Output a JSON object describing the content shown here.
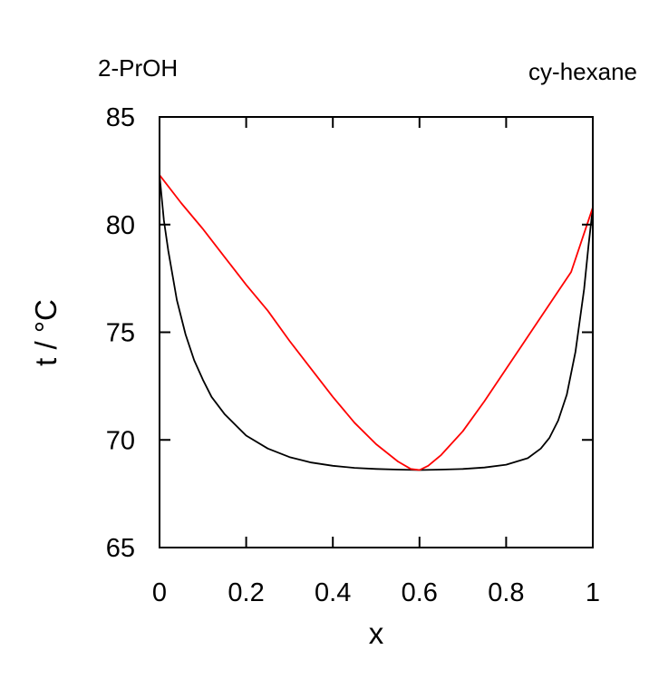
{
  "chart_data": {
    "type": "line",
    "title": "",
    "xlabel": "x",
    "ylabel": "t / °C",
    "xlim": [
      0,
      1
    ],
    "ylim": [
      65,
      85
    ],
    "x_ticks": [
      0,
      0.2,
      0.4,
      0.6,
      0.8,
      1
    ],
    "x_tick_labels": [
      "0",
      "0.2",
      "0.4",
      "0.6",
      "0.8",
      "1"
    ],
    "y_ticks": [
      65,
      70,
      75,
      80,
      85
    ],
    "y_tick_labels": [
      "65",
      "70",
      "75",
      "80",
      "85"
    ],
    "grid": false,
    "legend": "none",
    "left_component_label": "2-PrOH",
    "right_component_label": "cy-hexane",
    "series": [
      {
        "color": "#000000",
        "points": [
          [
            0.0,
            82.3
          ],
          [
            0.01,
            80.2
          ],
          [
            0.02,
            78.8
          ],
          [
            0.04,
            76.5
          ],
          [
            0.06,
            74.9
          ],
          [
            0.08,
            73.7
          ],
          [
            0.1,
            72.8
          ],
          [
            0.12,
            72.0
          ],
          [
            0.15,
            71.2
          ],
          [
            0.18,
            70.6
          ],
          [
            0.2,
            70.2
          ],
          [
            0.25,
            69.6
          ],
          [
            0.3,
            69.2
          ],
          [
            0.35,
            68.95
          ],
          [
            0.4,
            68.8
          ],
          [
            0.45,
            68.7
          ],
          [
            0.5,
            68.65
          ],
          [
            0.55,
            68.62
          ],
          [
            0.6,
            68.6
          ],
          [
            0.65,
            68.62
          ],
          [
            0.7,
            68.65
          ],
          [
            0.75,
            68.72
          ],
          [
            0.8,
            68.85
          ],
          [
            0.85,
            69.15
          ],
          [
            0.88,
            69.6
          ],
          [
            0.9,
            70.1
          ],
          [
            0.92,
            70.9
          ],
          [
            0.94,
            72.1
          ],
          [
            0.96,
            74.1
          ],
          [
            0.98,
            77.0
          ],
          [
            0.99,
            79.0
          ],
          [
            1.0,
            80.8
          ]
        ]
      },
      {
        "color": "#ff0000",
        "points": [
          [
            0.0,
            82.3
          ],
          [
            0.05,
            81.0
          ],
          [
            0.1,
            79.8
          ],
          [
            0.15,
            78.5
          ],
          [
            0.2,
            77.2
          ],
          [
            0.25,
            76.0
          ],
          [
            0.3,
            74.6
          ],
          [
            0.35,
            73.3
          ],
          [
            0.4,
            72.0
          ],
          [
            0.45,
            70.8
          ],
          [
            0.5,
            69.8
          ],
          [
            0.55,
            69.0
          ],
          [
            0.58,
            68.65
          ],
          [
            0.6,
            68.6
          ],
          [
            0.62,
            68.8
          ],
          [
            0.65,
            69.3
          ],
          [
            0.7,
            70.4
          ],
          [
            0.75,
            71.8
          ],
          [
            0.8,
            73.3
          ],
          [
            0.85,
            74.8
          ],
          [
            0.9,
            76.3
          ],
          [
            0.95,
            77.8
          ],
          [
            1.0,
            80.8
          ]
        ]
      }
    ]
  }
}
